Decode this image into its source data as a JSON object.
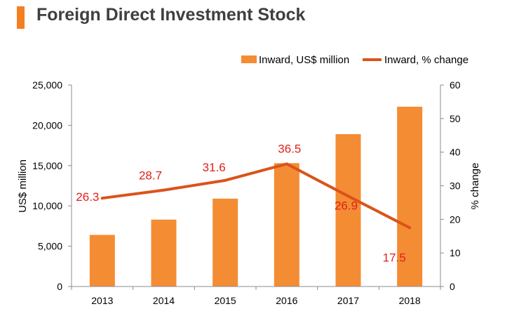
{
  "header": {
    "title": "Foreign Direct Investment Stock"
  },
  "colors": {
    "bar": "#f48c34",
    "line": "#d9541a",
    "label": "#e0201b",
    "accent": "#f47f20"
  },
  "chart_data": {
    "type": "bar",
    "title": "Foreign Direct Investment Stock",
    "categories": [
      "2013",
      "2014",
      "2015",
      "2016",
      "2017",
      "2018"
    ],
    "series": [
      {
        "name": "Inward, US$ million",
        "type": "bar",
        "axis": "left",
        "values": [
          6400,
          8300,
          10900,
          15300,
          18900,
          22300
        ]
      },
      {
        "name": "Inward, % change",
        "type": "line",
        "axis": "right",
        "values": [
          26.3,
          28.7,
          31.6,
          36.5,
          26.9,
          17.5
        ],
        "labels": [
          "26.3",
          "28.7",
          "31.6",
          "36.5",
          "26.9",
          "17.5"
        ]
      }
    ],
    "y_left": {
      "label": "US$ million",
      "lim": [
        0,
        25000
      ],
      "ticks": [
        0,
        5000,
        10000,
        15000,
        20000,
        25000
      ],
      "tick_labels": [
        "0",
        "5,000",
        "10,000",
        "15,000",
        "20,000",
        "25,000"
      ]
    },
    "y_right": {
      "label": "% change",
      "lim": [
        0,
        60
      ],
      "ticks": [
        0,
        10,
        20,
        30,
        40,
        50,
        60
      ],
      "tick_labels": [
        "0",
        "10",
        "20",
        "30",
        "40",
        "50",
        "60"
      ]
    },
    "legend": {
      "position": "top-right"
    },
    "grid": false
  }
}
